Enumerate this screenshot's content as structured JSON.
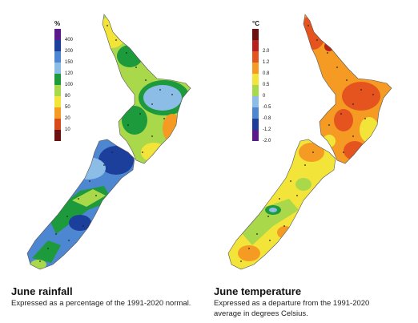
{
  "rainfall": {
    "title": "June rainfall",
    "subtitle": "Expressed as a percentage of the 1991-2020 normal.",
    "legend_unit": "%",
    "legend": [
      {
        "label": "400",
        "color": "#5b1a8b"
      },
      {
        "label": "200",
        "color": "#1d3f9c"
      },
      {
        "label": "150",
        "color": "#4d87d1"
      },
      {
        "label": "120",
        "color": "#8cbde6"
      },
      {
        "label": "100",
        "color": "#1c9a3c"
      },
      {
        "label": "80",
        "color": "#a9d84b"
      },
      {
        "label": "50",
        "color": "#f3e43a"
      },
      {
        "label": "20",
        "color": "#f59b23"
      },
      {
        "label": "10",
        "color": "#d74a1c"
      },
      {
        "label": "",
        "color": "#6b1111"
      }
    ]
  },
  "temperature": {
    "title": "June temperature",
    "subtitle": "Expressed as a departure from the 1991-2020 average in degrees Celsius.",
    "legend_unit": "°C",
    "legend": [
      {
        "label": "",
        "color": "#6b1111"
      },
      {
        "label": "2.0",
        "color": "#b8221a"
      },
      {
        "label": "1.2",
        "color": "#e5541f"
      },
      {
        "label": "0.8",
        "color": "#f59b23"
      },
      {
        "label": "0.5",
        "color": "#f3e43a"
      },
      {
        "label": "0",
        "color": "#a9d84b"
      },
      {
        "label": "-0.5",
        "color": "#8cbde6"
      },
      {
        "label": "-0.8",
        "color": "#4d87d1"
      },
      {
        "label": "-1.2",
        "color": "#1d3f9c"
      },
      {
        "label": "-2.0",
        "color": "#5b1a8b"
      }
    ]
  }
}
